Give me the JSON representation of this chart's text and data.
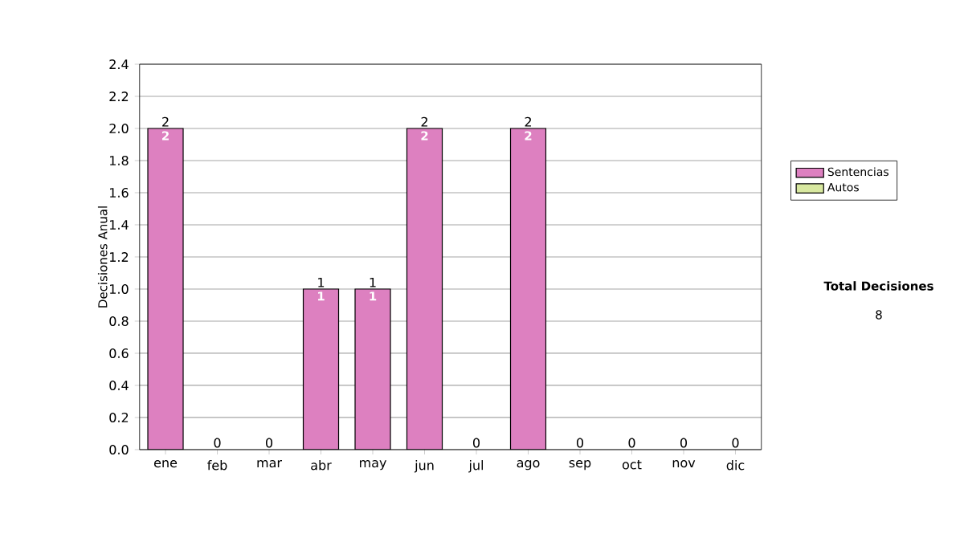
{
  "chart_data": {
    "type": "bar",
    "stacked": true,
    "categories": [
      "ene",
      "feb",
      "mar",
      "abr",
      "may",
      "jun",
      "jul",
      "ago",
      "sep",
      "oct",
      "nov",
      "dic"
    ],
    "series": [
      {
        "name": "Sentencias",
        "color": "#dd80c0",
        "values": [
          2,
          0,
          0,
          1,
          1,
          2,
          0,
          2,
          0,
          0,
          0,
          0
        ],
        "value_labels": [
          "2",
          null,
          null,
          "1",
          "1",
          "2",
          null,
          "2",
          null,
          null,
          null,
          null
        ]
      },
      {
        "name": "Autos",
        "color": "#d8e8a0",
        "values": [
          0,
          0,
          0,
          0,
          0,
          0,
          0,
          0,
          0,
          0,
          0,
          0
        ]
      }
    ],
    "totals": [
      "2",
      "0",
      "0",
      "1",
      "1",
      "2",
      "0",
      "2",
      "0",
      "0",
      "0",
      "0"
    ],
    "ylabel": "Decisiones Anual",
    "ylim": [
      0,
      2.4
    ],
    "yticks": [
      {
        "value": 0,
        "label": "0.0"
      },
      {
        "value": 0.2,
        "label": "0.2"
      },
      {
        "value": 0.4,
        "label": "0.4"
      },
      {
        "value": 0.6,
        "label": "0.6"
      },
      {
        "value": 0.8,
        "label": "0.8"
      },
      {
        "value": 1.0,
        "label": "1.0"
      },
      {
        "value": 1.2,
        "label": "1.2"
      },
      {
        "value": 1.4,
        "label": "1.4"
      },
      {
        "value": 1.6,
        "label": "1.6"
      },
      {
        "value": 1.8,
        "label": "1.8"
      },
      {
        "value": 2.0,
        "label": "2.0"
      },
      {
        "value": 2.2,
        "label": "2.2"
      },
      {
        "value": 2.4,
        "label": "2.4"
      }
    ],
    "grid": "y",
    "legend": "right",
    "annotations": [
      "**Total Decisiones**",
      "8"
    ]
  }
}
